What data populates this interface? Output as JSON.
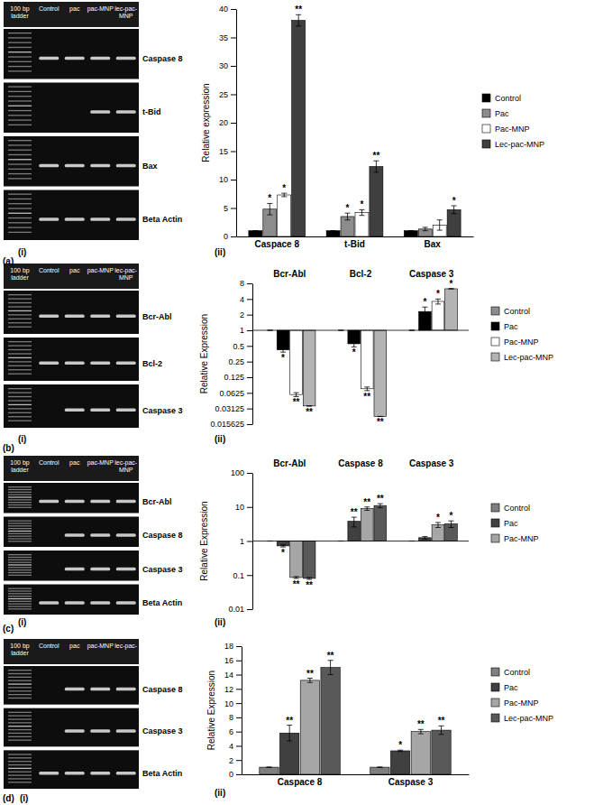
{
  "chart_data": [
    {
      "type": "bar",
      "y_label": "Relative expression",
      "categories": [
        "Caspace 8",
        "t-Bid",
        "Bax"
      ],
      "ylim": [
        0,
        40
      ],
      "yticks": [
        0,
        5,
        10,
        15,
        20,
        25,
        30,
        35,
        40
      ],
      "legend": "right",
      "series": [
        {
          "name": "Control",
          "color": "#000000",
          "values": [
            1,
            1,
            1
          ],
          "errors": [
            0,
            0,
            0
          ]
        },
        {
          "name": "Pac",
          "color": "#8c8c8c",
          "values": [
            4.8,
            3.5,
            1.3
          ],
          "errors": [
            1.0,
            0.6,
            0.3
          ],
          "significance": [
            "*",
            "*",
            null
          ]
        },
        {
          "name": "Pac-MNP",
          "color": "#ffffff",
          "values": [
            7.3,
            4.2,
            2.0
          ],
          "errors": [
            0.3,
            0.5,
            0.9
          ],
          "significance": [
            "*",
            "*",
            null
          ]
        },
        {
          "name": "Lec-pac-MNP",
          "color": "#3f3f3f",
          "values": [
            38,
            12.3,
            4.7
          ],
          "errors": [
            1.0,
            1.0,
            0.7
          ],
          "significance": [
            "**",
            "**",
            "*"
          ]
        }
      ]
    },
    {
      "type": "bar",
      "log": "y",
      "y_label": "Relative Expression",
      "categories": [
        "Bcr-Abl",
        "Bcl-2",
        "Caspase 3"
      ],
      "ylim": [
        0.015625,
        8
      ],
      "yticks": [
        0.015625,
        0.03125,
        0.0625,
        0.125,
        0.25,
        0.5,
        1,
        2,
        4,
        8
      ],
      "baseline": 1,
      "legend": "right",
      "series": [
        {
          "name": "Control",
          "color": "#8c8c8c",
          "values": [
            1,
            1,
            1
          ],
          "errors": [
            0,
            0,
            0
          ]
        },
        {
          "name": "Pac",
          "color": "#000000",
          "values": [
            0.42,
            0.55,
            2.3
          ],
          "errors": [
            0.04,
            0.07,
            0.5
          ],
          "significance": [
            "*",
            "*",
            "*"
          ]
        },
        {
          "name": "Pac-MNP",
          "color": "#ffffff",
          "values": [
            0.058,
            0.075,
            3.6
          ],
          "errors": [
            0.005,
            0.006,
            0.4
          ],
          "significance": [
            "**",
            "**",
            "*"
          ]
        },
        {
          "name": "Lec-pac-MNP",
          "color": "#b3b3b3",
          "values": [
            0.035,
            0.022,
            6.3
          ],
          "errors": [
            0,
            0,
            0
          ],
          "significance": [
            "**",
            "**",
            "*"
          ]
        }
      ]
    },
    {
      "type": "bar",
      "log": "y",
      "y_label": "Relative Expression",
      "categories": [
        "Bcr-Abl",
        "Caspase 8",
        "Caspase 3"
      ],
      "ylim": [
        0.01,
        100
      ],
      "yticks": [
        0.01,
        0.1,
        1,
        10,
        100
      ],
      "baseline": 1,
      "legend": "right",
      "series": [
        {
          "name": "Control",
          "color": "#7f7f7f",
          "values": [
            1,
            1,
            1
          ],
          "errors": [
            0,
            0,
            0
          ]
        },
        {
          "name": "Pac",
          "color": "#404040",
          "values": [
            0.72,
            3.8,
            1.25
          ],
          "errors": [
            0.05,
            1.2,
            0.1
          ],
          "significance": [
            "*",
            "**",
            null
          ]
        },
        {
          "name": "Pac-MNP",
          "color": "#a6a6a6",
          "values": [
            0.085,
            9,
            3.0
          ],
          "errors": [
            0.005,
            1.0,
            0.5
          ],
          "significance": [
            "**",
            "**",
            "*"
          ]
        },
        {
          "color": "#595959",
          "values": [
            0.08,
            11,
            3.2
          ],
          "errors": [
            0.005,
            1.5,
            0.7
          ],
          "significance": [
            "**",
            "**",
            "*"
          ]
        }
      ]
    },
    {
      "type": "bar",
      "y_label": "Relative Expression",
      "categories": [
        "Caspace 8",
        "Caspase 3"
      ],
      "ylim": [
        0,
        18
      ],
      "yticks": [
        0,
        2,
        4,
        6,
        8,
        10,
        12,
        14,
        16,
        18
      ],
      "legend": "right",
      "series": [
        {
          "name": "Control",
          "color": "#7f7f7f",
          "values": [
            1,
            1
          ],
          "errors": [
            0,
            0
          ]
        },
        {
          "name": "Pac",
          "color": "#404040",
          "values": [
            5.8,
            3.3
          ],
          "errors": [
            1.1,
            0.1
          ],
          "significance": [
            "**",
            "*"
          ]
        },
        {
          "name": "Pac-MNP",
          "color": "#a6a6a6",
          "values": [
            13.2,
            6.0
          ],
          "errors": [
            0.3,
            0.3
          ],
          "significance": [
            "**",
            "**"
          ]
        },
        {
          "name": "Lec-pac-MNP",
          "color": "#595959",
          "values": [
            15,
            6.2
          ],
          "errors": [
            1.0,
            0.6
          ],
          "significance": [
            "**",
            "**"
          ]
        }
      ]
    }
  ],
  "gels": [
    {
      "lanes": [
        "100 bp ladder",
        "Control",
        "pac",
        "pac-MNP",
        "lec-pac-MNP"
      ],
      "rows": [
        {
          "gene": "Caspase 8",
          "present": [
            true,
            true,
            true,
            true
          ]
        },
        {
          "gene": "t-Bid",
          "present": [
            false,
            false,
            true,
            true
          ]
        },
        {
          "gene": "Bax",
          "present": [
            true,
            true,
            true,
            true
          ]
        },
        {
          "gene": "Beta Actin",
          "present": [
            true,
            true,
            true,
            true
          ]
        }
      ]
    },
    {
      "lanes": [
        "100 bp ladder",
        "Control",
        "pac",
        "pac-MNP",
        "lec-pac-MNP"
      ],
      "rows": [
        {
          "gene": "Bcr-Abl",
          "present": [
            true,
            true,
            true,
            true
          ]
        },
        {
          "gene": "Bcl-2",
          "present": [
            true,
            true,
            true,
            true
          ]
        },
        {
          "gene": "Caspase 3",
          "present": [
            false,
            true,
            true,
            true
          ]
        }
      ]
    },
    {
      "lanes": [
        "100 bp ladder",
        "Control",
        "pac",
        "pac-MNP",
        "lec-pac-MNP"
      ],
      "rows": [
        {
          "gene": "Bcr-Abl",
          "present": [
            true,
            true,
            true,
            true
          ]
        },
        {
          "gene": "Caspase 8",
          "present": [
            false,
            true,
            true,
            true
          ]
        },
        {
          "gene": "Caspase 3",
          "present": [
            false,
            true,
            true,
            true
          ]
        },
        {
          "gene": "Beta Actin",
          "present": [
            true,
            true,
            true,
            true
          ]
        }
      ]
    },
    {
      "lanes": [
        "100 bp ladder",
        "Control",
        "pac",
        "pac-MNP",
        "lec-pac-"
      ],
      "rows": [
        {
          "gene": "Caspase 8",
          "present": [
            false,
            true,
            true,
            true
          ]
        },
        {
          "gene": "Caspase 3",
          "present": [
            false,
            true,
            true,
            true
          ]
        },
        {
          "gene": "Beta Actin",
          "present": [
            true,
            true,
            true,
            true
          ]
        }
      ]
    }
  ],
  "panels": [
    {
      "label": "(a)",
      "gel": "(i)",
      "chart": "(ii)"
    },
    {
      "label": "(b)",
      "gel": "(i)",
      "chart": "(ii)"
    },
    {
      "label": "(c)",
      "gel": "(i)",
      "chart": "(ii)"
    },
    {
      "label": "(d)",
      "gel": "(i)",
      "chart": "(ii)"
    }
  ]
}
